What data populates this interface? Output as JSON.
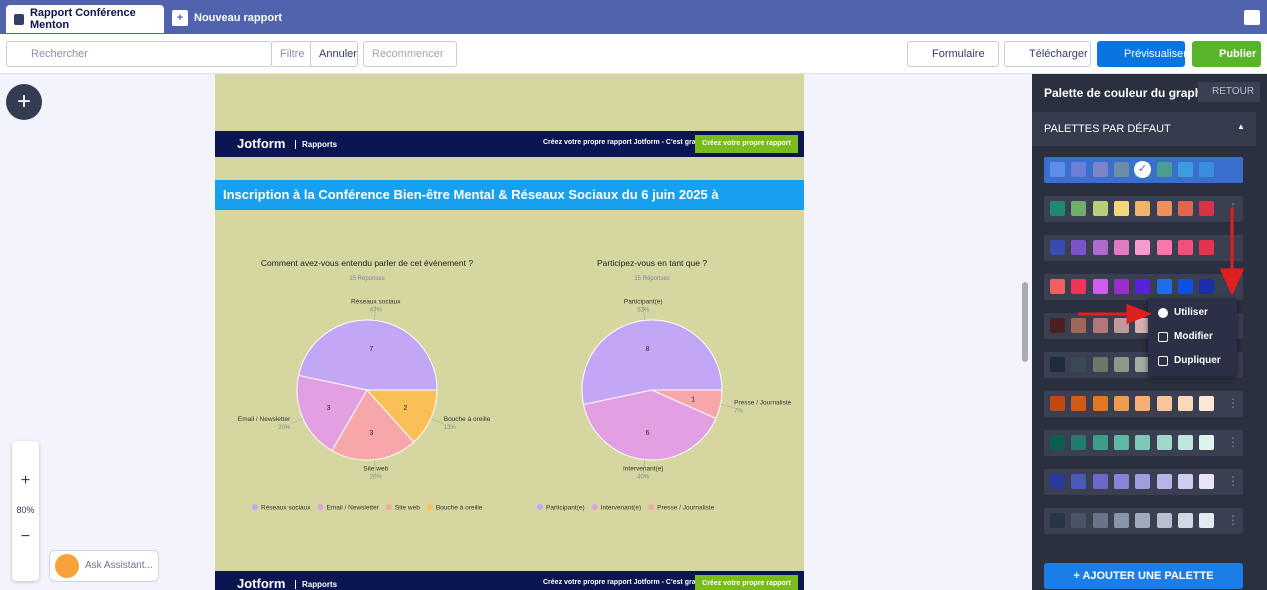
{
  "tabs": {
    "active": "Rapport Conférence Menton",
    "new": "Nouveau rapport"
  },
  "toolbar": {
    "search": "Rechercher",
    "filter": "Filtre",
    "undo": "Annuler",
    "redo": "Recommencer",
    "form": "Formulaire",
    "download": "Télécharger",
    "preview": "Prévisualiser",
    "publish": "Publier"
  },
  "zoom": "80%",
  "assistant": "Ask Assistant...",
  "banner": {
    "brand": "Jotform",
    "section": "Rapports",
    "promo": "Créez votre propre rapport Jotform - C'est gratuit",
    "button": "Créez votre propre rapport"
  },
  "report_title": "Inscription à la Conférence Bien-être Mental & Réseaux Sociaux du 6 juin 2025 à",
  "charts": [
    {
      "type": "pie",
      "title": "Comment avez-vous entendu parler de cet événement ?",
      "subtitle": "15 Réponses",
      "categories": [
        "Réseaux sociaux",
        "Email / Newsletter",
        "Site web",
        "Bouche à oreille"
      ],
      "values": [
        7,
        3,
        3,
        2
      ],
      "percent_labels": [
        "47%",
        "20%",
        "20%",
        "13%"
      ],
      "colors": [
        "#c4a6f6",
        "#e2a0e2",
        "#f7a6aa",
        "#fbbf57"
      ]
    },
    {
      "type": "pie",
      "title": "Participez-vous en tant que ?",
      "subtitle": "15 Réponses",
      "categories": [
        "Participant(e)",
        "Intervenant(e)",
        "Presse / Journaliste"
      ],
      "values": [
        8,
        6,
        1
      ],
      "percent_labels": [
        "53%",
        "40%",
        "7%"
      ],
      "colors": [
        "#c4a6f6",
        "#e2a0e2",
        "#f7a6aa"
      ]
    }
  ],
  "panel": {
    "title": "Palette de couleur du graph",
    "back": "RETOUR",
    "section": "PALETTES PAR DÉFAUT",
    "add": "AJOUTER UNE PALETTE",
    "menu": [
      "Utiliser",
      "Modifier",
      "Dupliquer"
    ],
    "palettes": [
      [
        "#5a8ee8",
        "#6c7fd6",
        "#7c86c4",
        "#6b8ea3",
        "#4fa39a",
        "#4a9e8f",
        "#3d9be0",
        "#3a8fdc"
      ],
      [
        "#1f8a70",
        "#6fae6a",
        "#b6cf7a",
        "#f3d77a",
        "#f2b36a",
        "#ef8f5a",
        "#e3644f",
        "#d6344a"
      ],
      [
        "#3a4bb0",
        "#7a55c8",
        "#b06acc",
        "#e07ac2",
        "#f59bd0",
        "#f777a8",
        "#f0507a",
        "#e3334f"
      ],
      [
        "#f25f5c",
        "#f2335c",
        "#d05cf0",
        "#9a2fc8",
        "#5a20e0",
        "#1f6ee8",
        "#1050e0",
        "#1a2db0"
      ],
      [
        "#4a2020",
        "#a06858",
        "#b07878",
        "#c09a9a",
        "#d8b0b0",
        "#e0c8c8",
        "#f0dcdc",
        "#f8eaea"
      ],
      [
        "#1e2d3e",
        "#3a4a55",
        "#6a7a6a",
        "#8a9a8a",
        "#a0b0a0",
        "#b8c8b8",
        "#d0dcd0",
        "#e0e8e0"
      ],
      [
        "#c04a10",
        "#d05a18",
        "#e07828",
        "#f09a50",
        "#f5b078",
        "#f8c49a",
        "#fbd8bc",
        "#fde8d8"
      ],
      [
        "#0f5e4e",
        "#1f7e6a",
        "#3f9e8a",
        "#5fb8a4",
        "#7fc8b8",
        "#9fd8c8",
        "#bfe6dc",
        "#dff2ec"
      ],
      [
        "#2a3a9a",
        "#4a5ab8",
        "#6a6ac8",
        "#8a84d8",
        "#a09ce0",
        "#b8b4e8",
        "#d0ccf0",
        "#e8e4f8"
      ],
      [
        "#2a3448",
        "#4a5468",
        "#6a7488",
        "#8a94a8",
        "#a0aabc",
        "#b8c0d0",
        "#d0d8e4",
        "#e4eaf2"
      ]
    ]
  }
}
